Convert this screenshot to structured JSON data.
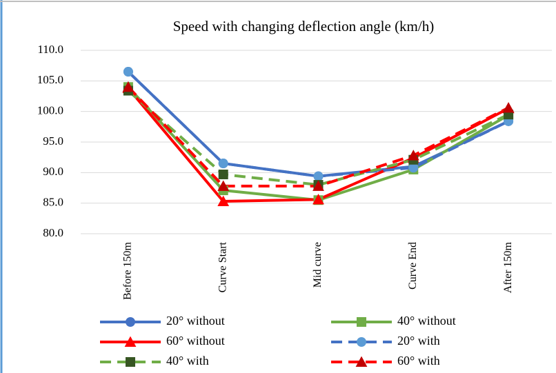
{
  "chart_data": {
    "type": "line",
    "title": "Speed with changing  deflection angle (km/h)",
    "categories": [
      "Before 150m",
      "Curve Start",
      "Mid curve",
      "Curve End",
      "After 150m"
    ],
    "ylim": [
      80,
      110
    ],
    "yticks": [
      {
        "value": 80,
        "label": "80.0"
      },
      {
        "value": 85,
        "label": "85.0"
      },
      {
        "value": 90,
        "label": "90.0"
      },
      {
        "value": 95,
        "label": "95.0"
      },
      {
        "value": 100,
        "label": "100.0"
      },
      {
        "value": 105,
        "label": "105.0"
      },
      {
        "value": 110,
        "label": "110.0"
      }
    ],
    "grid": true,
    "series": [
      {
        "name": "20° without",
        "color": "#4472c4",
        "marker_color": "#4472c4",
        "marker": "circle",
        "dashed": false,
        "values": [
          106.5,
          91.5,
          89.4,
          91.0,
          98.4
        ]
      },
      {
        "name": "40° without",
        "color": "#70ad47",
        "marker_color": "#70ad47",
        "marker": "square",
        "dashed": false,
        "values": [
          104.0,
          87.1,
          85.5,
          90.5,
          99.4
        ]
      },
      {
        "name": "60° without",
        "color": "#ff0000",
        "marker_color": "#ff0000",
        "marker": "triangle",
        "dashed": false,
        "values": [
          103.8,
          85.3,
          85.6,
          92.4,
          100.5
        ]
      },
      {
        "name": "20° with",
        "color": "#4472c4",
        "marker_color": "#5b9bd5",
        "marker": "circle",
        "dashed": true,
        "values": [
          106.5,
          91.5,
          89.4,
          90.8,
          98.4
        ]
      },
      {
        "name": "40° with",
        "color": "#70ad47",
        "marker_color": "#375623",
        "marker": "square",
        "dashed": true,
        "values": [
          103.4,
          89.7,
          88.0,
          92.1,
          99.5
        ]
      },
      {
        "name": "60° with",
        "color": "#ff0000",
        "marker_color": "#c00000",
        "marker": "triangle",
        "dashed": true,
        "values": [
          104.0,
          87.8,
          87.8,
          92.8,
          100.6
        ]
      }
    ]
  }
}
